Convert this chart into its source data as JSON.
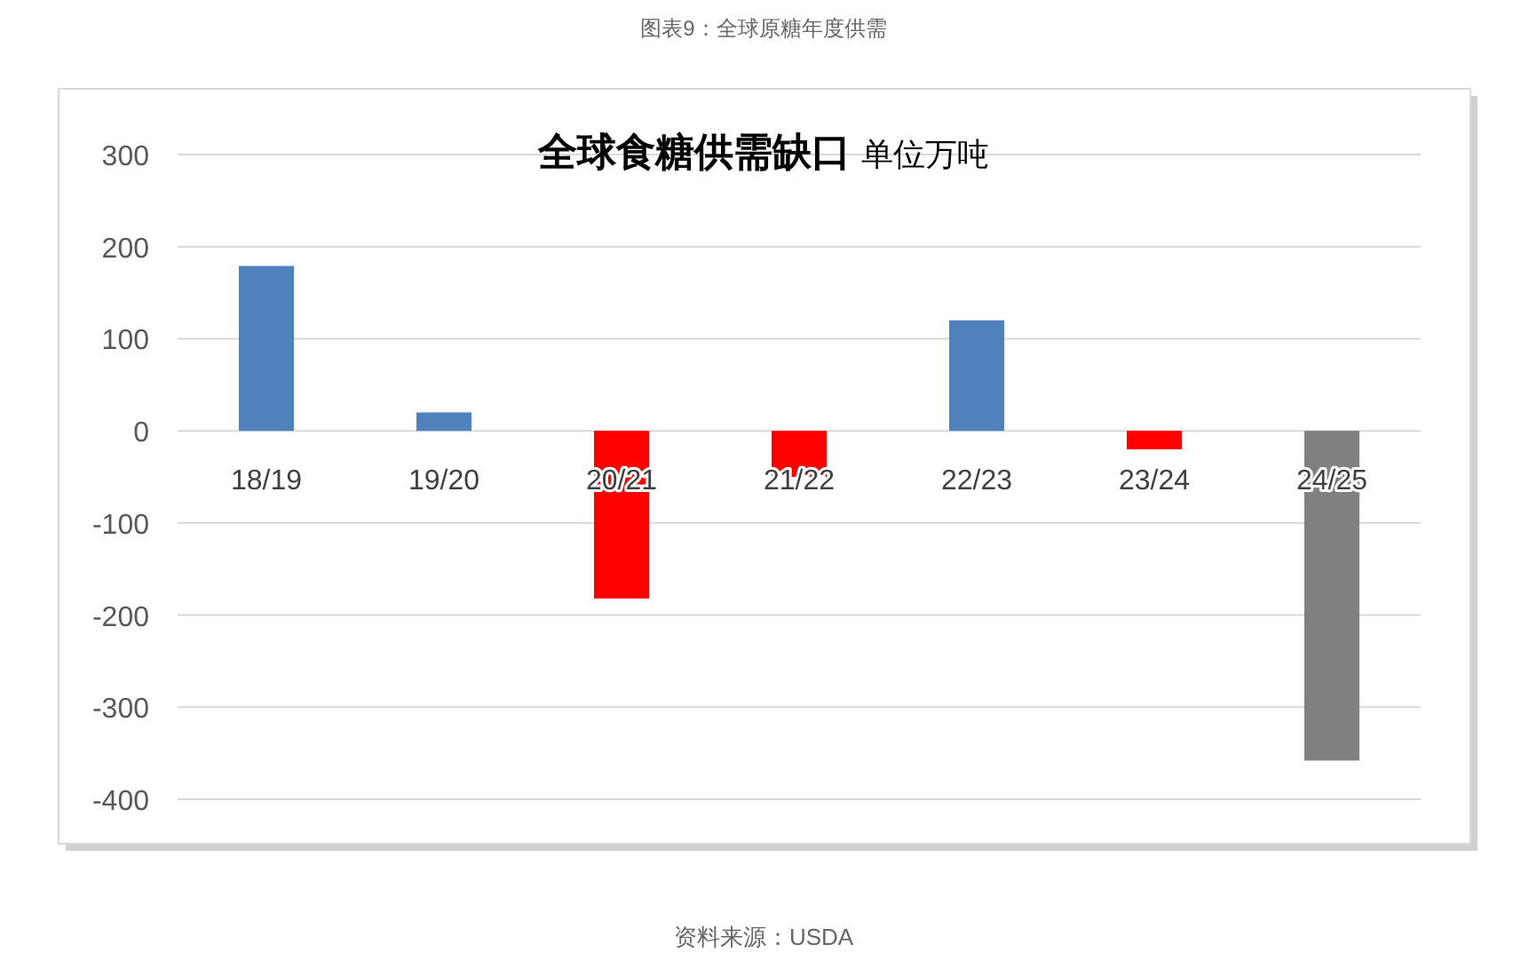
{
  "chart_data": {
    "type": "bar",
    "title": "全球食糖供需缺口",
    "categories": [
      "18/19",
      "19/20",
      "20/21",
      "21/22",
      "22/23",
      "23/24",
      "24/25"
    ],
    "values": [
      179,
      20,
      -182,
      -50,
      120,
      -20,
      -358
    ],
    "colors": [
      "#4f81bd",
      "#4f81bd",
      "#ff0000",
      "#ff0000",
      "#4f81bd",
      "#ff0000",
      "#808080"
    ],
    "ylim": [
      -400,
      300
    ],
    "yticks": [
      -400,
      -300,
      -200,
      -100,
      0,
      100,
      200,
      300
    ],
    "grid": "y",
    "annotations": [
      "图表9：全球原糖年度供需",
      "单位万吨",
      "资料来源：USDA"
    ]
  }
}
